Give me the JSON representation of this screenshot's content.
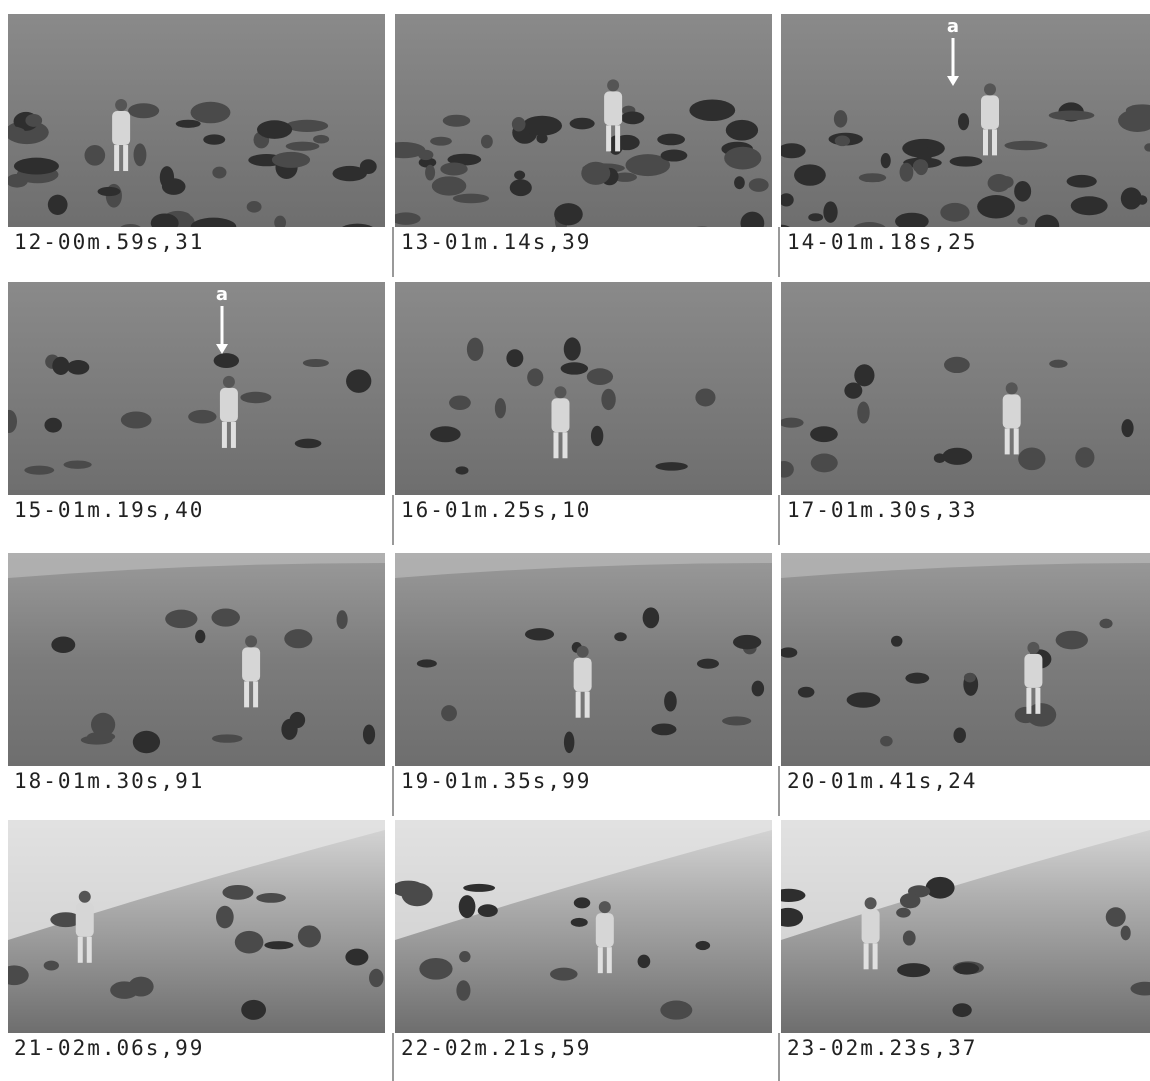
{
  "frames": [
    {
      "caption": "12-00m.59s,31"
    },
    {
      "caption": "13-01m.14s,39"
    },
    {
      "caption": "14-01m.18s,25",
      "marker": "a"
    },
    {
      "caption": "15-01m.19s,40",
      "marker": "a"
    },
    {
      "caption": "16-01m.25s,10"
    },
    {
      "caption": "17-01m.30s,33"
    },
    {
      "caption": "18-01m.30s,91"
    },
    {
      "caption": "19-01m.35s,99"
    },
    {
      "caption": "20-01m.41s,24"
    },
    {
      "caption": "21-02m.06s,99"
    },
    {
      "caption": "22-02m.21s,59"
    },
    {
      "caption": "23-02m.23s,37"
    }
  ]
}
